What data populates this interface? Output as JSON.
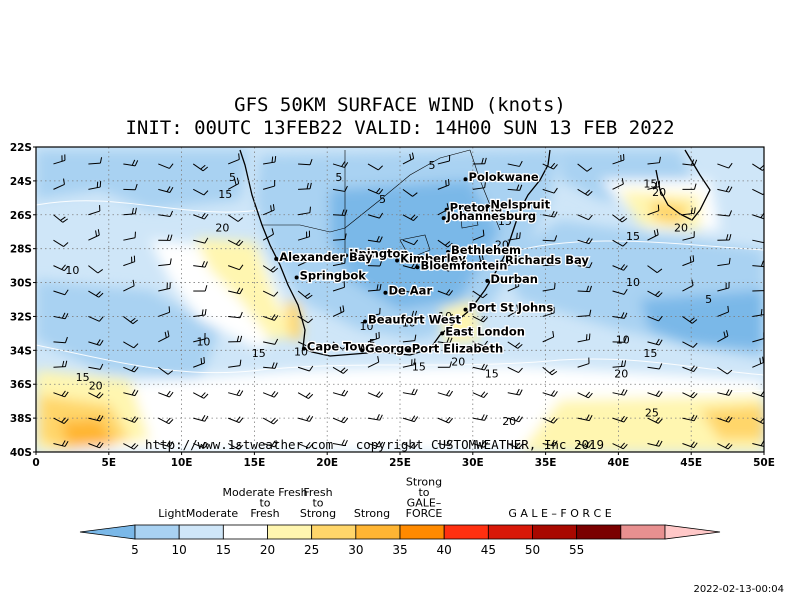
{
  "title": {
    "line1": "GFS 50KM SURFACE WIND (knots)",
    "line2": "INIT: 00UTC 13FEB22  VALID: 14H00 SUN 13 FEB 2022"
  },
  "axes": {
    "lat_labels": [
      "22S",
      "24S",
      "26S",
      "28S",
      "30S",
      "32S",
      "34S",
      "36S",
      "38S",
      "40S"
    ],
    "lon_labels": [
      "0",
      "5E",
      "10E",
      "15E",
      "20E",
      "25E",
      "30E",
      "35E",
      "40E",
      "45E",
      "50E"
    ]
  },
  "cities": [
    {
      "name": "Polokwane",
      "lon": 29.5,
      "lat": -23.9
    },
    {
      "name": "Pretoria",
      "lon": 28.2,
      "lat": -25.7
    },
    {
      "name": "Nelspruit",
      "lon": 31.0,
      "lat": -25.5
    },
    {
      "name": "Johannesburg",
      "lon": 28.0,
      "lat": -26.2
    },
    {
      "name": "Bethlehem",
      "lon": 28.3,
      "lat": -28.2
    },
    {
      "name": "Upington",
      "lon": 21.3,
      "lat": -28.4
    },
    {
      "name": "Kimberley",
      "lon": 24.8,
      "lat": -28.7
    },
    {
      "name": "Alexander Bay",
      "lon": 16.5,
      "lat": -28.6
    },
    {
      "name": "Richards Bay",
      "lon": 32.0,
      "lat": -28.8
    },
    {
      "name": "Bloemfontein",
      "lon": 26.2,
      "lat": -29.1
    },
    {
      "name": "Springbok",
      "lon": 17.9,
      "lat": -29.7
    },
    {
      "name": "Durban",
      "lon": 31.0,
      "lat": -29.9
    },
    {
      "name": "De Aar",
      "lon": 24.0,
      "lat": -30.6
    },
    {
      "name": "Beaufort West",
      "lon": 22.6,
      "lat": -32.3
    },
    {
      "name": "Port St Johns",
      "lon": 29.5,
      "lat": -31.6
    },
    {
      "name": "East London",
      "lon": 27.9,
      "lat": -33.0
    },
    {
      "name": "Cape Town",
      "lon": 18.4,
      "lat": -33.9
    },
    {
      "name": "George",
      "lon": 22.4,
      "lat": -34.0
    },
    {
      "name": "Port Elizabeth",
      "lon": 25.6,
      "lat": -34.0
    }
  ],
  "contour_labels": [
    {
      "text": "5",
      "lon": 13.5,
      "lat": -24.0
    },
    {
      "text": "5",
      "lon": 20.8,
      "lat": -24.0
    },
    {
      "text": "5",
      "lon": 27.2,
      "lat": -23.3
    },
    {
      "text": "5",
      "lon": 23.8,
      "lat": -25.3
    },
    {
      "text": "15",
      "lon": 13.0,
      "lat": -25.0
    },
    {
      "text": "20",
      "lon": 12.8,
      "lat": -27.0
    },
    {
      "text": "10",
      "lon": 2.5,
      "lat": -29.5
    },
    {
      "text": "10",
      "lon": 11.5,
      "lat": -33.7
    },
    {
      "text": "15",
      "lon": 15.3,
      "lat": -34.4
    },
    {
      "text": "10",
      "lon": 18.2,
      "lat": -34.3
    },
    {
      "text": "5",
      "lon": 23.1,
      "lat": -33.8
    },
    {
      "text": "10",
      "lon": 22.7,
      "lat": -32.8
    },
    {
      "text": "10",
      "lon": 25.6,
      "lat": -32.6
    },
    {
      "text": "10",
      "lon": 28.1,
      "lat": -32.2
    },
    {
      "text": "15",
      "lon": 26.3,
      "lat": -35.2
    },
    {
      "text": "20",
      "lon": 29.0,
      "lat": -34.9
    },
    {
      "text": "15",
      "lon": 31.3,
      "lat": -35.6
    },
    {
      "text": "20",
      "lon": 32.0,
      "lat": -28.0
    },
    {
      "text": "15",
      "lon": 32.2,
      "lat": -26.6
    },
    {
      "text": "20",
      "lon": 4.1,
      "lat": -36.3
    },
    {
      "text": "15",
      "lon": 3.2,
      "lat": -35.8
    },
    {
      "text": "20",
      "lon": 32.5,
      "lat": -38.4
    },
    {
      "text": "15",
      "lon": 42.2,
      "lat": -24.4
    },
    {
      "text": "20",
      "lon": 42.8,
      "lat": -24.9
    },
    {
      "text": "20",
      "lon": 44.3,
      "lat": -27.0
    },
    {
      "text": "15",
      "lon": 41.0,
      "lat": -27.5
    },
    {
      "text": "10",
      "lon": 41.0,
      "lat": -30.2
    },
    {
      "text": "5",
      "lon": 46.2,
      "lat": -31.2
    },
    {
      "text": "10",
      "lon": 40.3,
      "lat": -33.6
    },
    {
      "text": "15",
      "lon": 42.2,
      "lat": -34.4
    },
    {
      "text": "20",
      "lon": 40.2,
      "lat": -35.6
    },
    {
      "text": "25",
      "lon": 42.3,
      "lat": -37.9
    }
  ],
  "copyright": "http://www.1stweather.com - copyright CUSTOMWEATHER, Inc 2019",
  "legend": {
    "categories": [
      {
        "label": "Light",
        "lines": [
          "Light"
        ]
      },
      {
        "label": "Moderate",
        "lines": [
          "Moderate"
        ]
      },
      {
        "label": "Moderate Fresh to Fresh",
        "lines": [
          "Moderate Fresh",
          "to",
          "Fresh"
        ]
      },
      {
        "label": "Fresh to Strong",
        "lines": [
          "Fresh",
          "to",
          "Strong"
        ]
      },
      {
        "label": "Strong",
        "lines": [
          "Strong"
        ]
      },
      {
        "label": "Strong to GALE-FORCE",
        "lines": [
          "Strong",
          "to",
          "GALE–",
          "FORCE"
        ]
      },
      {
        "label": "GALE-FORCE",
        "lines": [
          "G  A  L  E  –  F  O  R  C  E"
        ]
      }
    ],
    "ticks": [
      "5",
      "10",
      "15",
      "20",
      "25",
      "30",
      "35",
      "40",
      "45",
      "50",
      "55"
    ],
    "colors": [
      "#7ab8e8",
      "#a9d2f2",
      "#cfe6f8",
      "#ffffff",
      "#fff6b0",
      "#ffd66a",
      "#ffb533",
      "#ff8a00",
      "#ff3010",
      "#d81808",
      "#a80800",
      "#7a0000",
      "#e89090",
      "#ffc8c8"
    ]
  },
  "timestamp": "2022-02-13-00:04"
}
